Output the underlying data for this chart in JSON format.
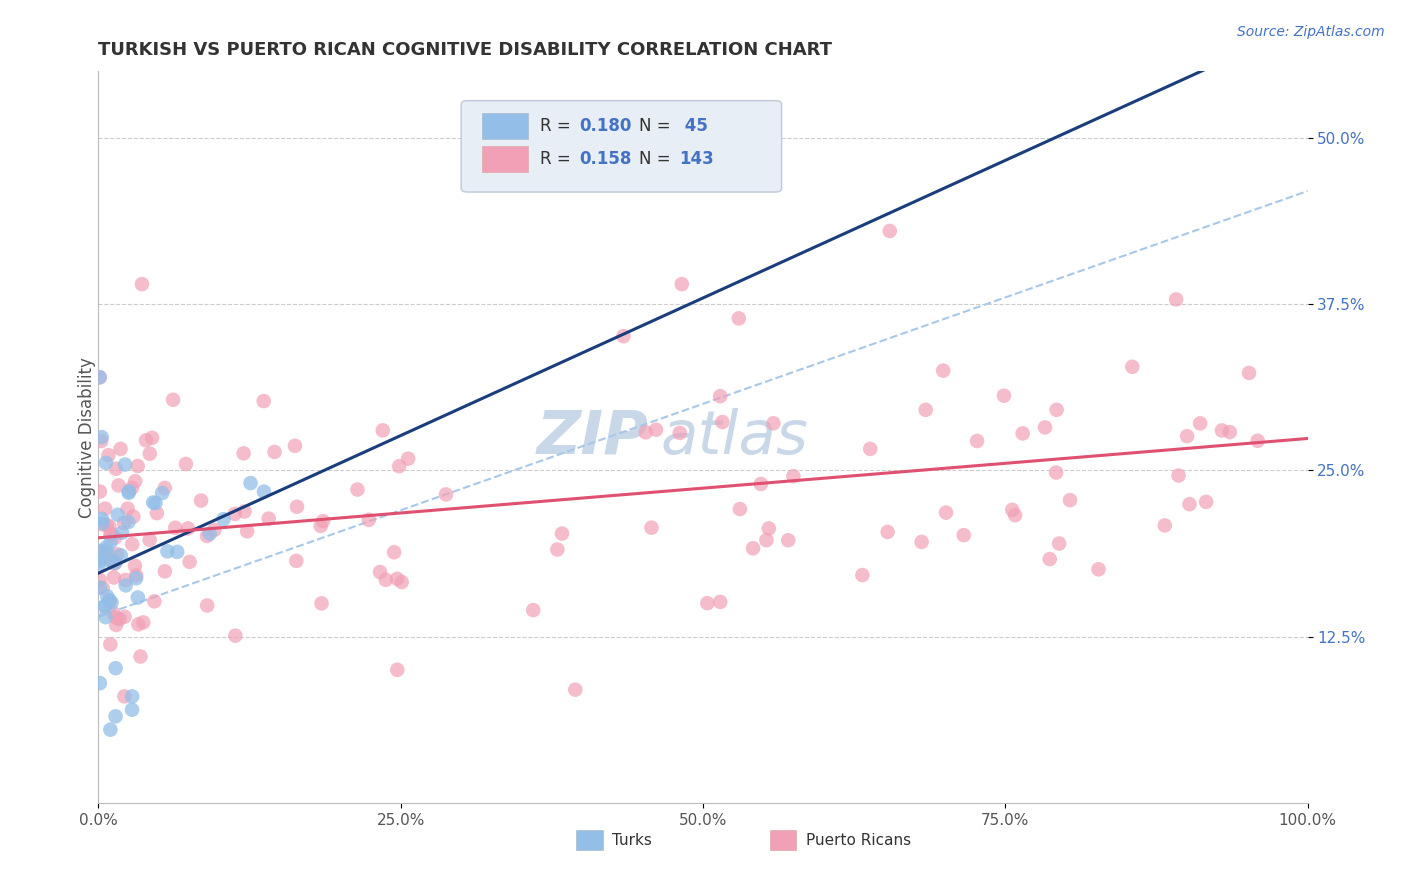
{
  "title": "TURKISH VS PUERTO RICAN COGNITIVE DISABILITY CORRELATION CHART",
  "source": "Source: ZipAtlas.com",
  "ylabel": "Cognitive Disability",
  "xlim": [
    0.0,
    1.0
  ],
  "ylim": [
    0.0,
    0.55
  ],
  "xticks": [
    0.0,
    0.25,
    0.5,
    0.75,
    1.0
  ],
  "xtick_labels": [
    "0.0%",
    "25.0%",
    "50.0%",
    "75.0%",
    "100.0%"
  ],
  "yticks": [
    0.125,
    0.25,
    0.375,
    0.5
  ],
  "ytick_labels": [
    "12.5%",
    "25.0%",
    "37.5%",
    "50.0%"
  ],
  "turks_R": 0.18,
  "turks_N": 45,
  "puerto_R": 0.158,
  "puerto_N": 143,
  "turks_color": "#92BEE8",
  "puerto_color": "#F2A0B5",
  "trend_turks_color": "#1A3D7C",
  "trend_puerto_color": "#E05070",
  "trend_dashed_color": "#A8C8E8",
  "background_color": "#FFFFFF",
  "watermark_zip_color": "#C8D8E8",
  "watermark_atlas_color": "#C8D8E8",
  "legend_box_color": "#E8EEF5",
  "legend_border_color": "#C0C8D8"
}
